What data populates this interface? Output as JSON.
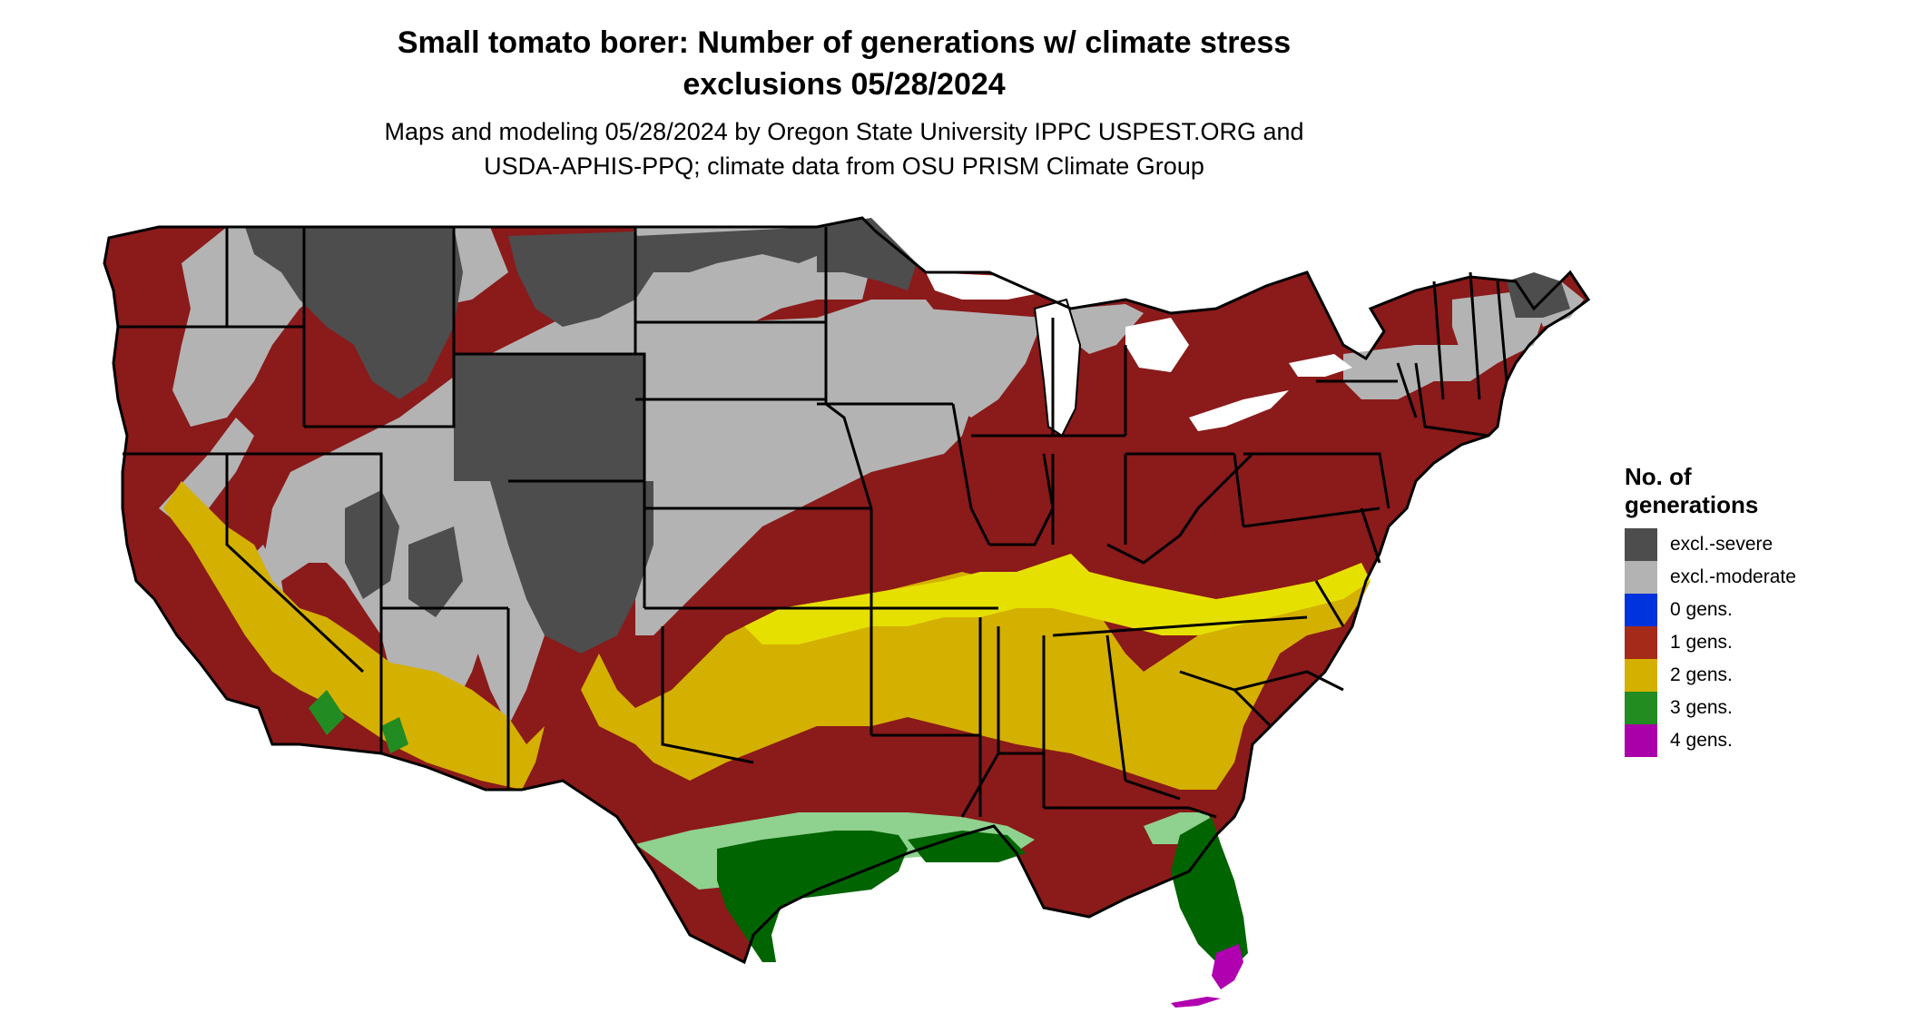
{
  "title": {
    "line1": "Small tomato borer: Number of generations w/ climate stress",
    "line2": "exclusions 05/28/2024"
  },
  "subtitle": {
    "line1": "Maps and modeling 05/28/2024 by Oregon State University IPPC USPEST.ORG and",
    "line2": "USDA-APHIS-PPQ; climate data from OSU PRISM Climate Group"
  },
  "legend": {
    "title_line1": "No. of",
    "title_line2": "generations",
    "items": [
      {
        "label": "excl.-severe",
        "color": "#4d4d4d"
      },
      {
        "label": "excl.-moderate",
        "color": "#b3b3b3"
      },
      {
        "label": "0 gens.",
        "color": "#0033dd"
      },
      {
        "label": "1 gens.",
        "color": "#a52a1a"
      },
      {
        "label": "2 gens.",
        "color": "#d4b000"
      },
      {
        "label": "3 gens.",
        "color": "#228b22"
      },
      {
        "label": "4 gens.",
        "color": "#aa00aa"
      }
    ]
  },
  "map_colors": {
    "excl_severe": "#4d4d4d",
    "excl_moderate": "#b3b3b3",
    "one_gen": "#8b1a1a",
    "two_gen": "#d4b000",
    "two_gen_bright": "#e8e000",
    "three_gen": "#006400",
    "three_gen_light": "#8fd18f",
    "four_gen": "#b000b0",
    "state_border": "#000000"
  }
}
